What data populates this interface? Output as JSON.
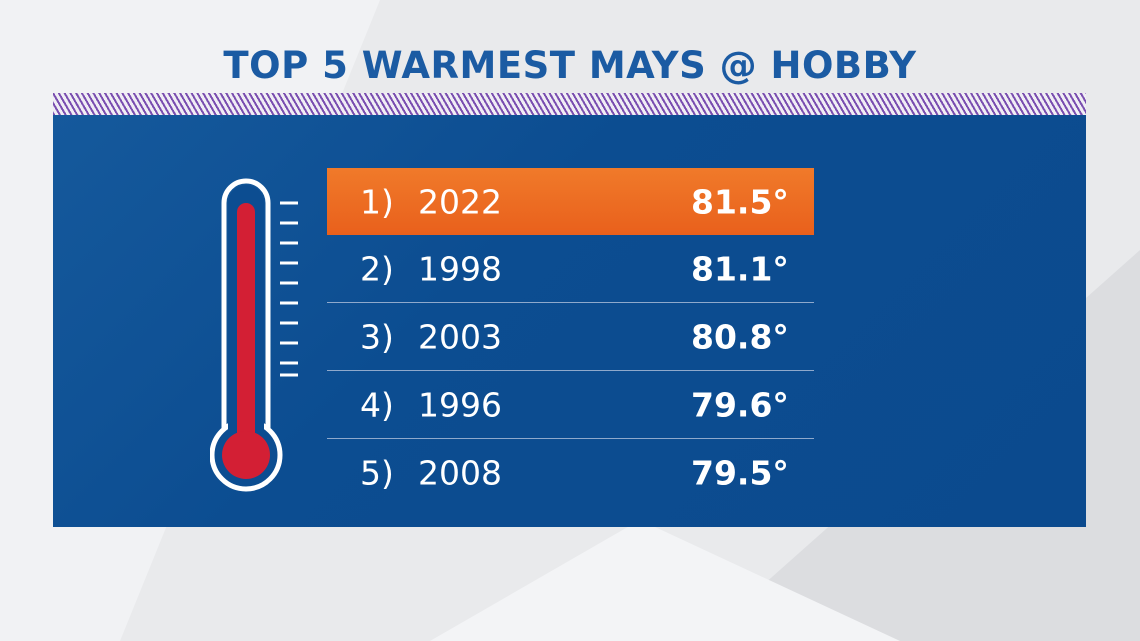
{
  "title": "TOP 5 WARMEST MAYS @ HOBBY",
  "table": {
    "rows": [
      {
        "rank": "1)",
        "year": "2022",
        "temp": "81.5°"
      },
      {
        "rank": "2)",
        "year": "1998",
        "temp": "81.1°"
      },
      {
        "rank": "3)",
        "year": "2003",
        "temp": "80.8°"
      },
      {
        "rank": "4)",
        "year": "1996",
        "temp": "79.6°"
      },
      {
        "rank": "5)",
        "year": "2008",
        "temp": "79.5°"
      }
    ]
  }
}
